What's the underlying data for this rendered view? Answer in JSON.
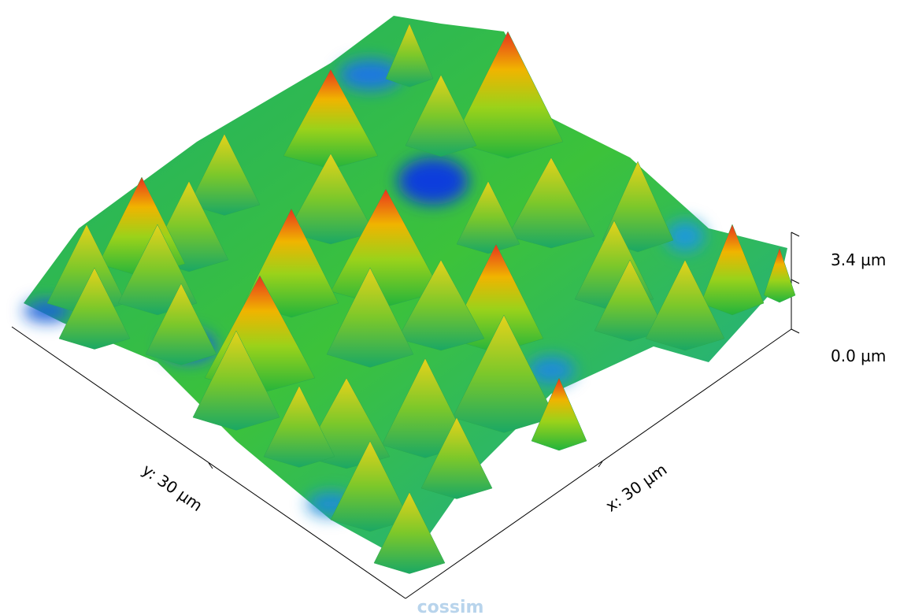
{
  "axes": {
    "y": {
      "label": "y: 30 µm"
    },
    "x": {
      "label": "x: 30 µm"
    },
    "z": {
      "ticks": [
        "3.4 µm",
        "0.0 µm"
      ]
    }
  },
  "watermark": "cossim"
}
